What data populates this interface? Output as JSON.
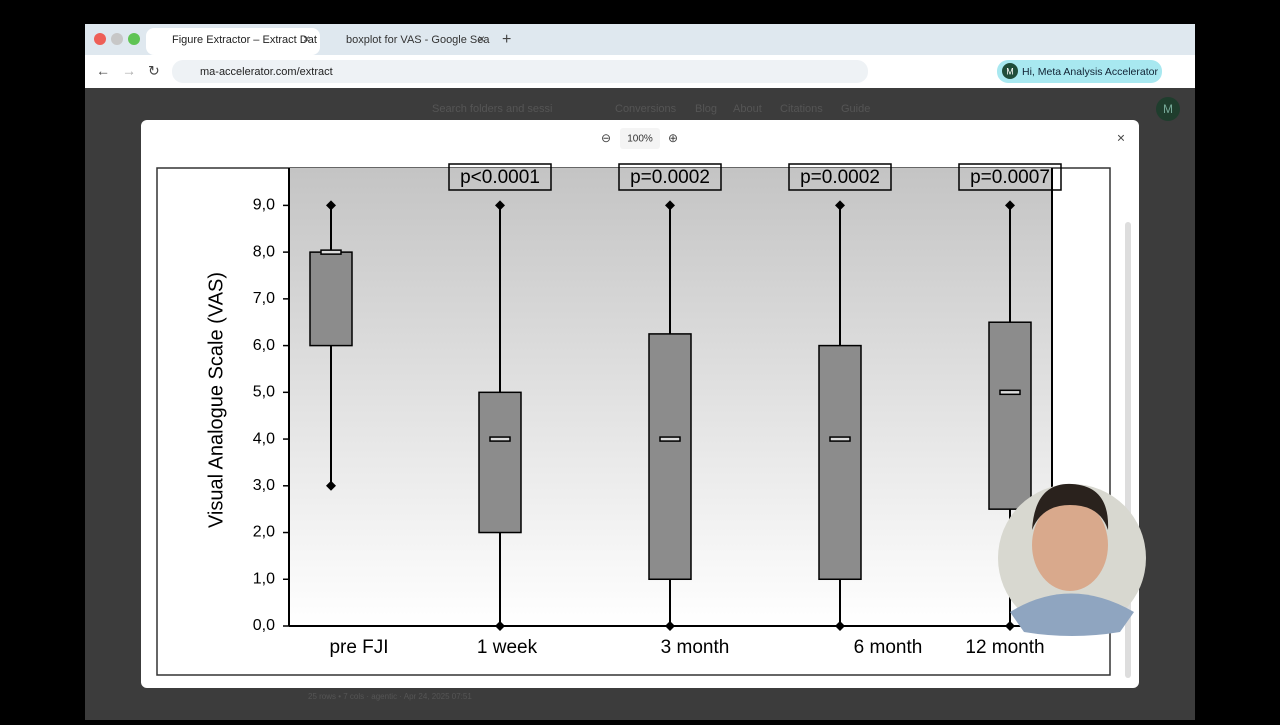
{
  "browser": {
    "tabs": [
      {
        "title": "Figure Extractor – Extract Dat"
      },
      {
        "title": "boxplot for VAS - Google Sea"
      }
    ],
    "url": "ma-accelerator.com/extract",
    "profile": {
      "initial": "M",
      "label": "Hi, Meta Analysis Accelerator"
    }
  },
  "app": {
    "search_placeholder": "Search folders and sessi",
    "nav": [
      "Conversions",
      "Blog",
      "About",
      "Citations",
      "Guide"
    ],
    "avatar": "M",
    "footer": "25 rows • 7 cols · agentic · Apr 24, 2025 07:51"
  },
  "modal": {
    "zoom": "100%"
  },
  "figure": {
    "type": "box",
    "y_label": "Visual Analogue Scale (VAS)",
    "categories": [
      "pre FJI",
      "1 week",
      "3 month",
      "6 month",
      "12 month"
    ],
    "p_values": [
      null,
      "p<0.0001",
      "p=0.0002",
      "p=0.0002",
      "p=0.0007"
    ],
    "min": [
      3,
      0,
      0,
      0,
      0
    ],
    "q1": [
      6,
      2,
      1,
      1,
      2.5
    ],
    "median": [
      8,
      4,
      4,
      4,
      5
    ],
    "q3": [
      8,
      5,
      6.25,
      6,
      6.5
    ],
    "max": [
      9,
      9,
      9,
      9,
      9
    ],
    "color": "#8c8c8c",
    "ylim": [
      0,
      9.8
    ],
    "yticks": [
      {
        "value": 0,
        "label": "0,0"
      },
      {
        "value": 1,
        "label": "1,0"
      },
      {
        "value": 2,
        "label": "2,0"
      },
      {
        "value": 3,
        "label": "3,0"
      },
      {
        "value": 4,
        "label": "4,0"
      },
      {
        "value": 5,
        "label": "5,0"
      },
      {
        "value": 6,
        "label": "6,0"
      },
      {
        "value": 7,
        "label": "7,0"
      },
      {
        "value": 8,
        "label": "8,0"
      },
      {
        "value": 9,
        "label": "9,0"
      }
    ]
  }
}
